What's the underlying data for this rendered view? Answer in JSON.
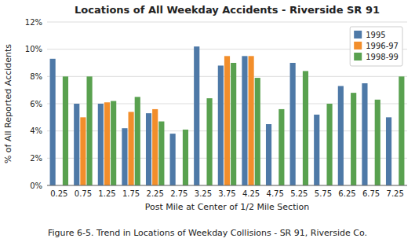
{
  "chart_data": {
    "type": "bar",
    "title": "Locations of All Weekday Accidents - Riverside SR 91",
    "x_label": "Post Mile at Center of 1/2 Mile Section",
    "y_label": "% of All Reported Accidents",
    "annotations": [
      "Figure 6-5. Trend in Locations of Weekday Collisions - SR 91, Riverside Co."
    ],
    "categories": [
      "0.25",
      "0.75",
      "1.25",
      "1.75",
      "2.25",
      "2.75",
      "3.25",
      "3.75",
      "4.25",
      "4.75",
      "5.25",
      "5.75",
      "6.25",
      "6.75",
      "7.25"
    ],
    "series": [
      {
        "name": "1995",
        "values": [
          9.3,
          6.0,
          6.0,
          4.2,
          5.3,
          3.8,
          10.2,
          8.8,
          9.5,
          4.5,
          9.0,
          5.2,
          7.3,
          7.5,
          5.0
        ]
      },
      {
        "name": "1996-97",
        "values": [
          0.0,
          5.0,
          6.1,
          5.4,
          5.6,
          0.0,
          0.0,
          9.5,
          9.5,
          0.0,
          0.0,
          0.0,
          0.0,
          0.0,
          0.0
        ]
      },
      {
        "name": "1998-99",
        "values": [
          8.0,
          8.0,
          6.2,
          6.5,
          4.7,
          4.1,
          6.4,
          9.0,
          7.9,
          5.6,
          8.4,
          6.0,
          6.8,
          6.3,
          8.0
        ]
      }
    ],
    "ylim": [
      0,
      12
    ],
    "yticks": [
      {
        "value": 0,
        "label": "0%"
      },
      {
        "value": 2,
        "label": "2%"
      },
      {
        "value": 4,
        "label": "4%"
      },
      {
        "value": 6,
        "label": "6%"
      },
      {
        "value": 8,
        "label": "8%"
      },
      {
        "value": 10,
        "label": "10%"
      },
      {
        "value": 12,
        "label": "12%"
      }
    ],
    "grid": true,
    "legend": "upper right"
  }
}
